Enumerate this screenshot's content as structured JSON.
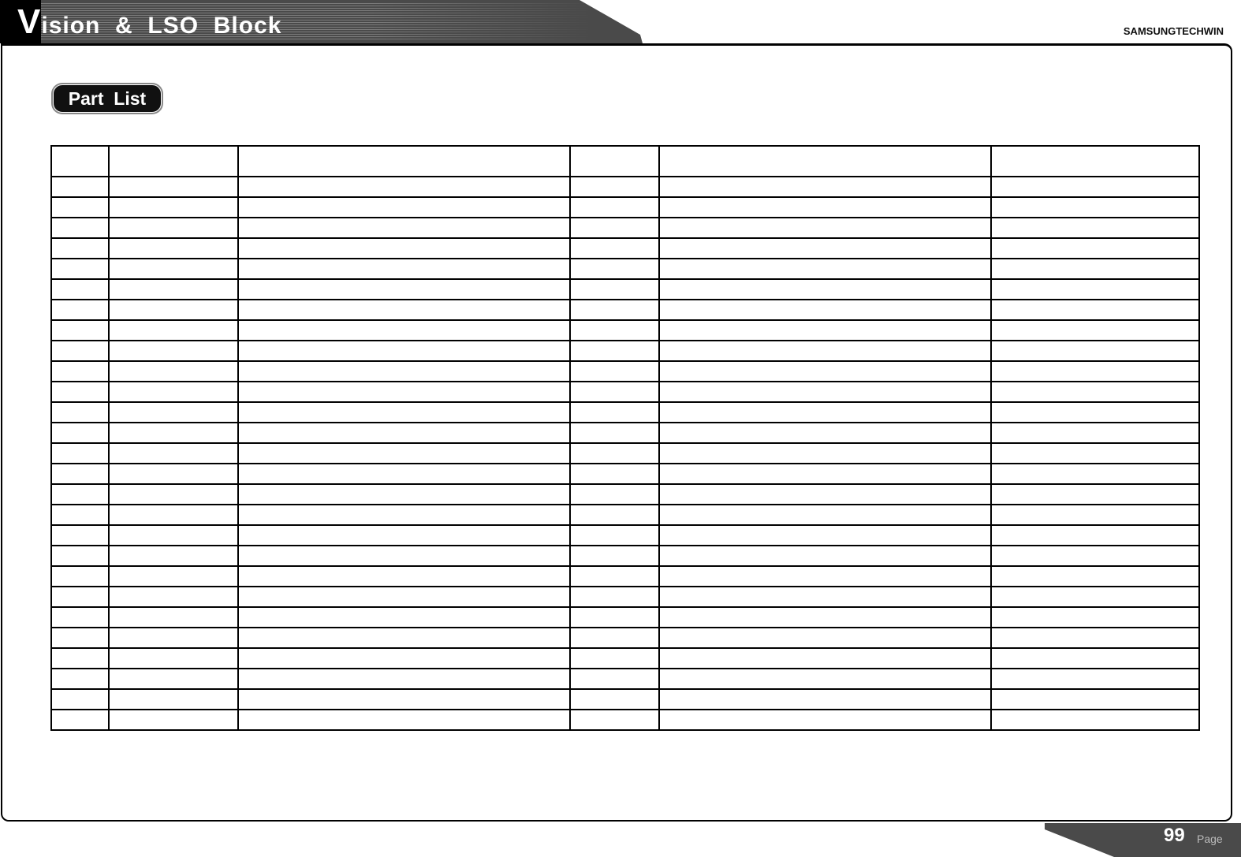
{
  "header": {
    "title_initial": "V",
    "title_rest": "ision  &  LSO  Block",
    "brand": "SAMSUNGTECHWIN"
  },
  "section": {
    "label": "Part  List"
  },
  "table": {
    "headers": [
      "",
      "",
      "",
      "",
      "",
      ""
    ],
    "body_row_count": 27
  },
  "footer": {
    "page_number": "99",
    "page_label": "Page"
  },
  "colors": {
    "banner": "#4a4a4a",
    "text": "#000000"
  }
}
